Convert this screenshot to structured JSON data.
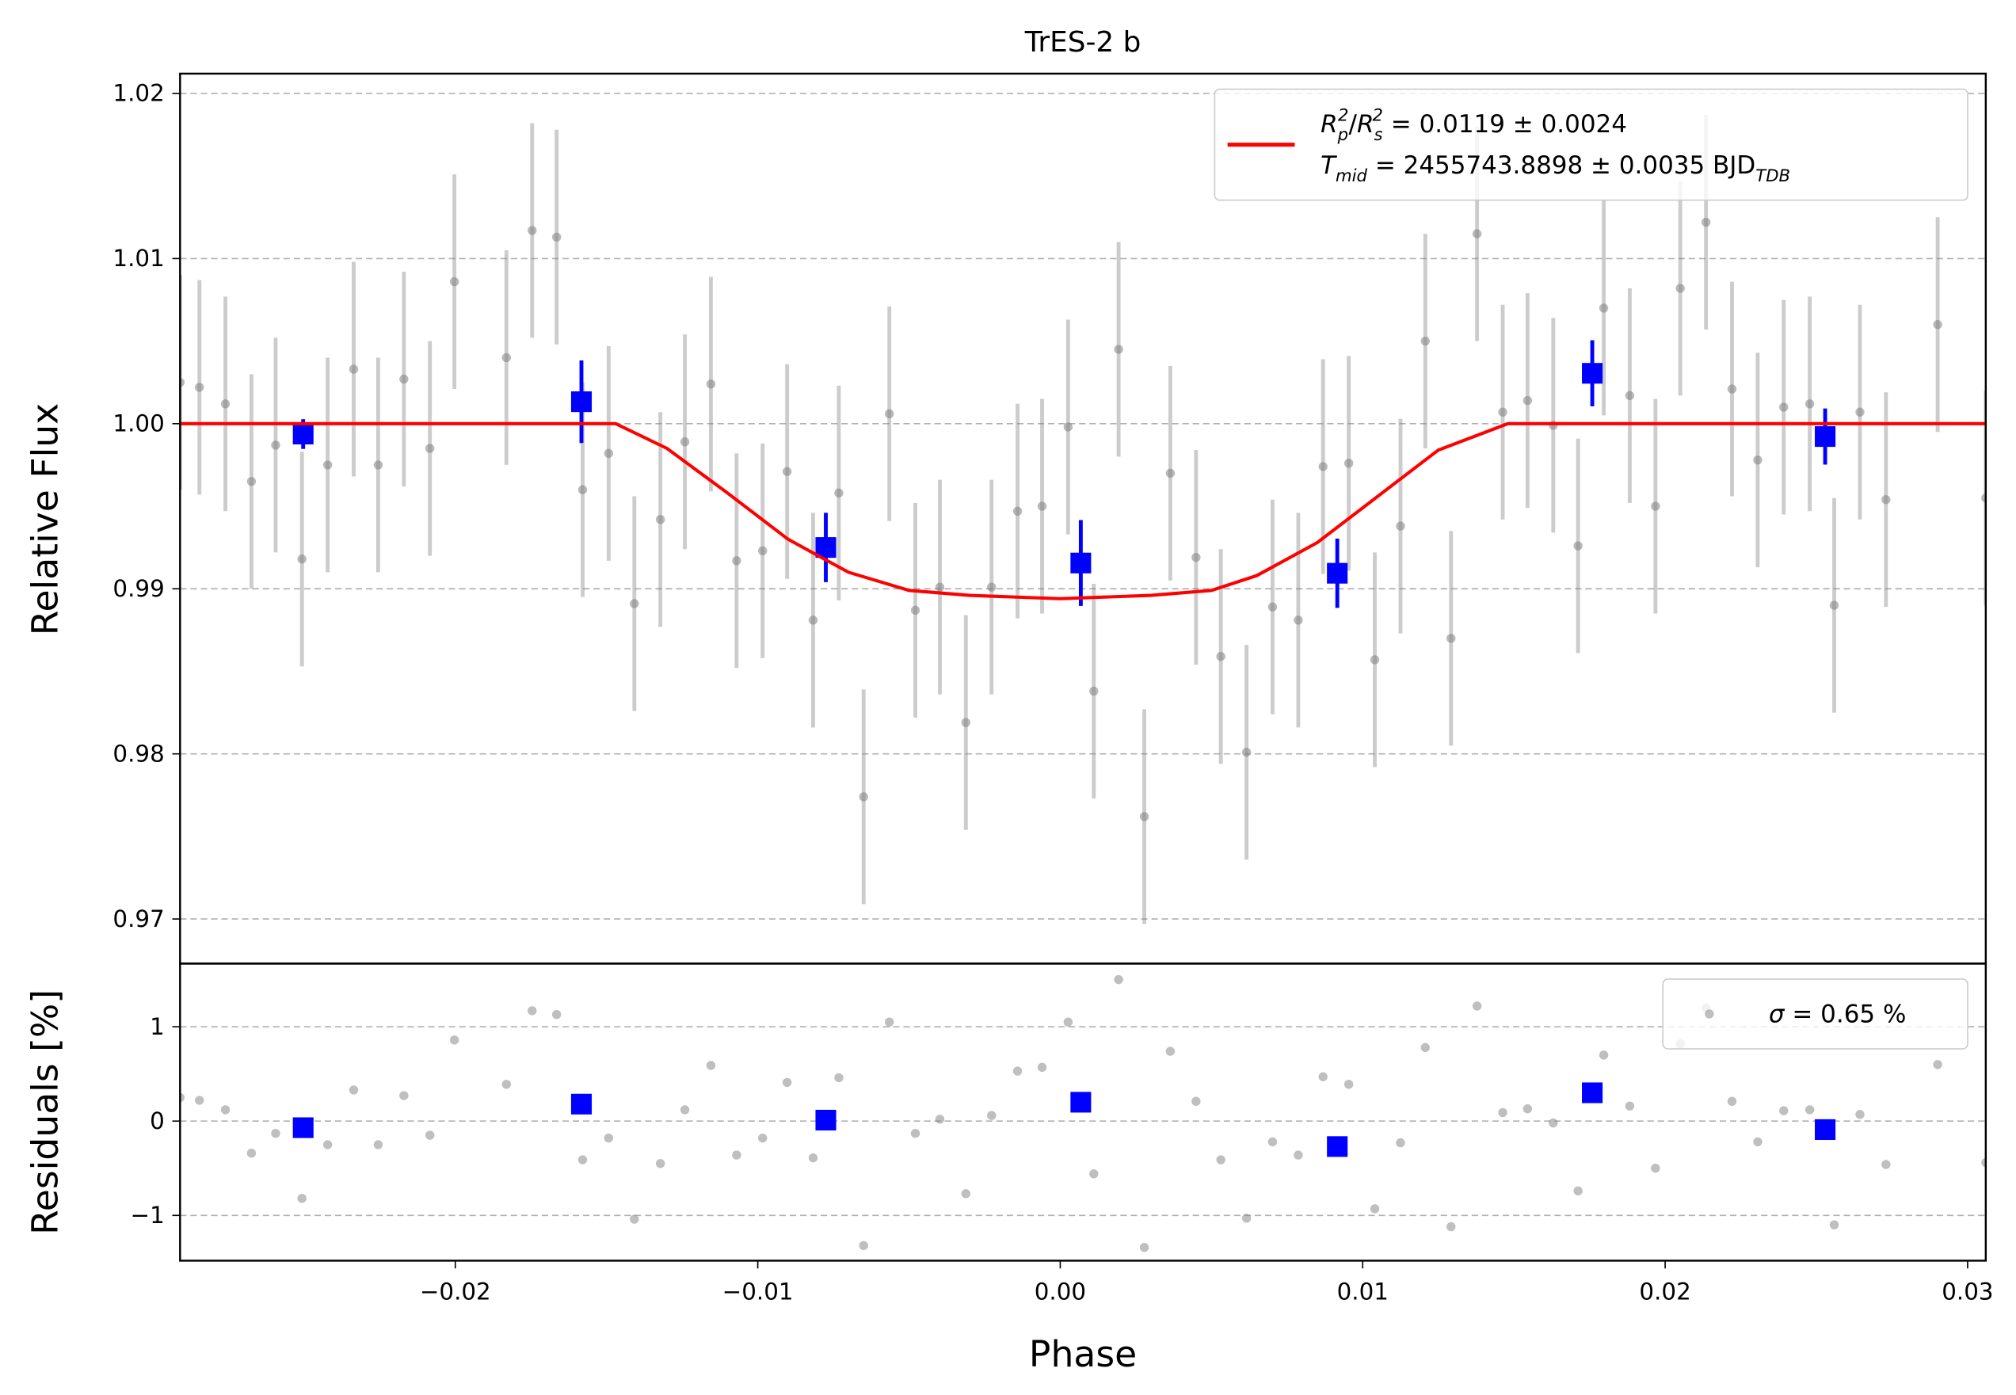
{
  "chart_data": [
    {
      "type": "scatter",
      "title": "TrES-2 b",
      "ylabel": "Relative Flux",
      "xlim": [
        -0.0291,
        0.0306
      ],
      "ylim": [
        0.9673,
        1.0212
      ],
      "yticks": [
        0.97,
        0.98,
        0.99,
        {
          "value": 1,
          "label": "1.00"
        },
        1.01,
        1.02
      ],
      "grid": "y",
      "legend": "upper right",
      "series": [
        {
          "type": "errorbar",
          "color": "#808080",
          "x": [
            -0.0291,
            -0.02846,
            -0.0276,
            -0.02674,
            -0.02594,
            -0.02507,
            -0.02422,
            -0.02336,
            -0.02255,
            -0.0217,
            -0.02084,
            -0.02003,
            -0.01831,
            -0.01746,
            -0.01665,
            -0.01579,
            -0.01493,
            -0.01408,
            -0.01322,
            -0.01241,
            -0.01155,
            -0.0107,
            -0.00984,
            -0.00903,
            -0.00817,
            -0.00732,
            -0.0065,
            -0.00565,
            -0.00479,
            -0.00398,
            -0.00312,
            -0.00227,
            -0.00141,
            -0.0006,
            0.00026,
            0.00111,
            0.00193,
            0.00278,
            0.00364,
            0.00449,
            0.00531,
            0.00616,
            0.00702,
            0.00787,
            0.00869,
            0.00954,
            0.0104,
            0.01125,
            0.01207,
            0.01292,
            0.01378,
            0.01463,
            0.01545,
            0.0163,
            0.01712,
            0.01797,
            0.01883,
            0.01968,
            0.0205,
            0.02135,
            0.02221,
            0.02306,
            0.02392,
            0.02478,
            0.02559,
            0.02644,
            0.0273,
            0.02901,
            0.0306
          ],
          "values": [
            1.0025,
            1.0022,
            1.0012,
            0.9965,
            0.9987,
            0.9918,
            0.9975,
            1.0033,
            0.9975,
            1.0027,
            0.9985,
            1.0086,
            1.004,
            1.0117,
            1.0113,
            0.996,
            0.9982,
            0.9891,
            0.9942,
            0.9989,
            1.0024,
            0.9917,
            0.9923,
            0.9971,
            0.9881,
            0.9958,
            0.9774,
            1.0006,
            0.9887,
            0.9901,
            0.9819,
            0.9901,
            0.9947,
            0.995,
            0.9998,
            0.9838,
            1.0045,
            0.9762,
            0.997,
            0.9919,
            0.9859,
            0.9801,
            0.9889,
            0.9881,
            0.9974,
            0.9976,
            0.9857,
            0.9938,
            1.005,
            0.987,
            1.0115,
            1.0007,
            1.0014,
            0.9999,
            0.9926,
            1.007,
            1.0017,
            0.995,
            1.0082,
            1.0122,
            1.0021,
            0.9978,
            1.001,
            1.0012,
            0.989,
            1.0007,
            0.9954,
            1.006,
            0.9955
          ],
          "errors": [
            0.0065,
            0.0065,
            0.0065,
            0.0065,
            0.0065,
            0.0065,
            0.0065,
            0.0065,
            0.0065,
            0.0065,
            0.0065,
            0.0065,
            0.0065,
            0.0065,
            0.0065,
            0.0065,
            0.0065,
            0.0065,
            0.0065,
            0.0065,
            0.0065,
            0.0065,
            0.0065,
            0.0065,
            0.0065,
            0.0065,
            0.0065,
            0.0065,
            0.0065,
            0.0065,
            0.0065,
            0.0065,
            0.0065,
            0.0065,
            0.0065,
            0.0065,
            0.0065,
            0.0065,
            0.0065,
            0.0065,
            0.0065,
            0.0065,
            0.0065,
            0.0065,
            0.0065,
            0.0065,
            0.0065,
            0.0065,
            0.0065,
            0.0065,
            0.0065,
            0.0065,
            0.0065,
            0.0065,
            0.0065,
            0.0065,
            0.0065,
            0.0065,
            0.0065,
            0.0065,
            0.0065,
            0.0065,
            0.0065,
            0.0065,
            0.0065,
            0.0065,
            0.0065,
            0.0065,
            0.0065
          ]
        },
        {
          "type": "binned",
          "color": "#0000ff",
          "x": [
            -0.02503,
            -0.01583,
            -0.00775,
            0.00068,
            0.00916,
            0.01759,
            0.02529
          ],
          "values": [
            0.99937,
            1.00133,
            0.9925,
            0.99156,
            0.99094,
            1.00305,
            0.99922
          ],
          "errors": [
            0.0009,
            0.0025,
            0.0021,
            0.0026,
            0.0021,
            0.002,
            0.0017
          ]
        },
        {
          "type": "line",
          "color": "#ff0000",
          "name_lines": [
            [
              {
                "text": "R",
                "style": "italic"
              },
              {
                "text": "p",
                "style": "sub"
              },
              {
                "text": "2",
                "style": "sup"
              },
              {
                "text": "/"
              },
              {
                "text": "R",
                "style": "italic"
              },
              {
                "text": "s",
                "style": "sub"
              },
              {
                "text": "2",
                "style": "sup"
              },
              {
                "text": " = 0.0119 ± 0.0024"
              }
            ],
            [
              {
                "text": "T",
                "style": "italic"
              },
              {
                "text": "mid",
                "style": "sub"
              },
              {
                "text": " = 2455743.8898 ± 0.0035 BJD"
              },
              {
                "text": "TDB",
                "style": "sub"
              }
            ]
          ],
          "x": [
            -0.0291,
            -0.0147,
            -0.013,
            -0.011,
            -0.009,
            -0.007,
            -0.005,
            -0.003,
            0,
            0.003,
            0.005,
            0.0065,
            0.0085,
            0.0105,
            0.0125,
            0.0148,
            0.0306
          ],
          "values": [
            1,
            1,
            0.9985,
            0.9958,
            0.993,
            0.991,
            0.9899,
            0.9896,
            0.9894,
            0.9896,
            0.9899,
            0.9908,
            0.9928,
            0.9956,
            0.9984,
            1,
            1
          ]
        }
      ]
    },
    {
      "type": "scatter",
      "xlabel": "Phase",
      "ylabel": "Residuals [%]",
      "xlim": [
        -0.0291,
        0.0306
      ],
      "ylim": [
        -1.48,
        1.67
      ],
      "xticks": [
        {
          "value": -0.02,
          "label": "−0.02"
        },
        {
          "value": -0.01,
          "label": "−0.01"
        },
        {
          "value": 0,
          "label": "0.00"
        },
        0.01,
        0.02,
        0.03
      ],
      "yticks": [
        {
          "value": -1,
          "label": "−1"
        },
        0,
        1
      ],
      "grid": "y",
      "legend": "upper right",
      "series": [
        {
          "type": "points",
          "color": "#808080",
          "name_lines": [
            [
              {
                "text": "σ",
                "style": "italic"
              },
              {
                "text": " = 0.65 %"
              }
            ]
          ],
          "x": [
            -0.0291,
            -0.02846,
            -0.0276,
            -0.02674,
            -0.02594,
            -0.02507,
            -0.02422,
            -0.02336,
            -0.02255,
            -0.0217,
            -0.02084,
            -0.02003,
            -0.01831,
            -0.01746,
            -0.01665,
            -0.01579,
            -0.01493,
            -0.01408,
            -0.01322,
            -0.01241,
            -0.01155,
            -0.0107,
            -0.00984,
            -0.00903,
            -0.00817,
            -0.00732,
            -0.0065,
            -0.00565,
            -0.00479,
            -0.00398,
            -0.00312,
            -0.00227,
            -0.00141,
            -0.0006,
            0.00026,
            0.00111,
            0.00193,
            0.00278,
            0.00364,
            0.00449,
            0.00531,
            0.00616,
            0.00702,
            0.00787,
            0.00869,
            0.00954,
            0.0104,
            0.01125,
            0.01207,
            0.01292,
            0.01378,
            0.01463,
            0.01545,
            0.0163,
            0.01712,
            0.01797,
            0.01883,
            0.01968,
            0.0205,
            0.02135,
            0.02221,
            0.02306,
            0.02392,
            0.02478,
            0.02559,
            0.02644,
            0.0273,
            0.02901,
            0.0306
          ],
          "values": [
            0.25,
            0.22,
            0.12,
            -0.34,
            -0.13,
            -0.82,
            -0.25,
            0.33,
            -0.25,
            0.27,
            -0.15,
            0.86,
            0.39,
            1.17,
            1.13,
            -0.41,
            -0.18,
            -1.04,
            -0.45,
            0.12,
            0.59,
            -0.36,
            -0.18,
            0.41,
            -0.39,
            0.46,
            -1.32,
            1.05,
            -0.13,
            0.02,
            -0.77,
            0.06,
            0.53,
            0.57,
            1.05,
            -0.56,
            1.5,
            -1.34,
            0.74,
            0.21,
            -0.41,
            -1.03,
            -0.22,
            -0.36,
            0.47,
            0.39,
            -0.93,
            -0.23,
            0.78,
            -1.12,
            1.22,
            0.09,
            0.13,
            -0.02,
            -0.74,
            0.7,
            0.16,
            -0.5,
            0.82,
            1.2,
            0.21,
            -0.22,
            0.11,
            0.12,
            -1.1,
            0.07,
            -0.46,
            0.6,
            -0.44
          ]
        },
        {
          "type": "binned",
          "color": "#0000ff",
          "x": [
            -0.02503,
            -0.01583,
            -0.00775,
            0.00068,
            0.00916,
            0.01759,
            0.02529
          ],
          "values": [
            -0.07,
            0.18,
            0.01,
            0.2,
            -0.27,
            0.3,
            -0.09
          ]
        }
      ]
    }
  ]
}
